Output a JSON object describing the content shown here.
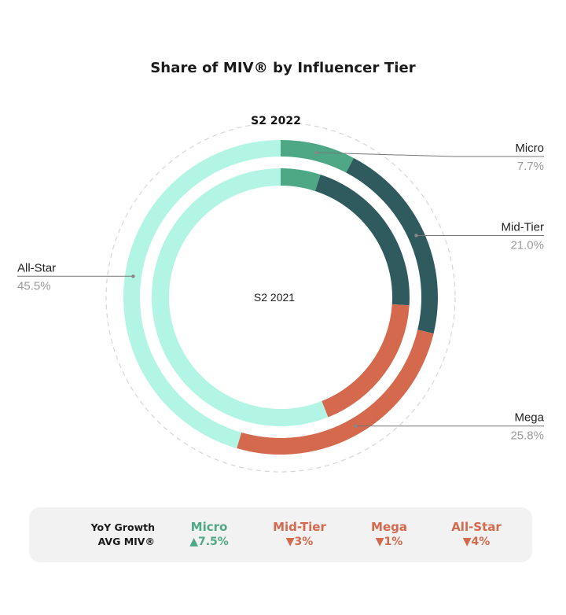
{
  "title": "Share of MIV® by Influencer Tier",
  "chart_data": {
    "type": "pie",
    "variant": "double-donut",
    "title": "Share of MIV® by Influencer Tier",
    "outer_ring_label": "S2 2022",
    "inner_ring_label": "S2 2021",
    "categories": [
      "Micro",
      "Mid-Tier",
      "Mega",
      "All-Star"
    ],
    "series": [
      {
        "name": "S2 2022",
        "values": [
          7.7,
          21.0,
          25.8,
          45.5
        ],
        "labels": [
          "7.7%",
          "21.0%",
          "25.8%",
          "45.5%"
        ]
      },
      {
        "name": "S2 2021",
        "values": [
          5.0,
          21.0,
          18.0,
          56.0
        ]
      }
    ],
    "colors": {
      "Micro": "#4fa885",
      "Mid-Tier": "#2f5b5e",
      "Mega": "#d4694d",
      "All-Star": "#b2f5e4"
    }
  },
  "growth": {
    "heading_line1": "YoY Growth",
    "heading_line2": "AVG MIV®",
    "items": [
      {
        "name": "Micro",
        "direction": "up",
        "arrow": "▲",
        "value": "7.5%",
        "color": "#4fa885"
      },
      {
        "name": "Mid-Tier",
        "direction": "down",
        "arrow": "▼",
        "value": "3%",
        "color": "#d4694d"
      },
      {
        "name": "Mega",
        "direction": "down",
        "arrow": "▼",
        "value": "1%",
        "color": "#d4694d"
      },
      {
        "name": "All-Star",
        "direction": "down",
        "arrow": "▼",
        "value": "4%",
        "color": "#d4694d"
      }
    ]
  }
}
